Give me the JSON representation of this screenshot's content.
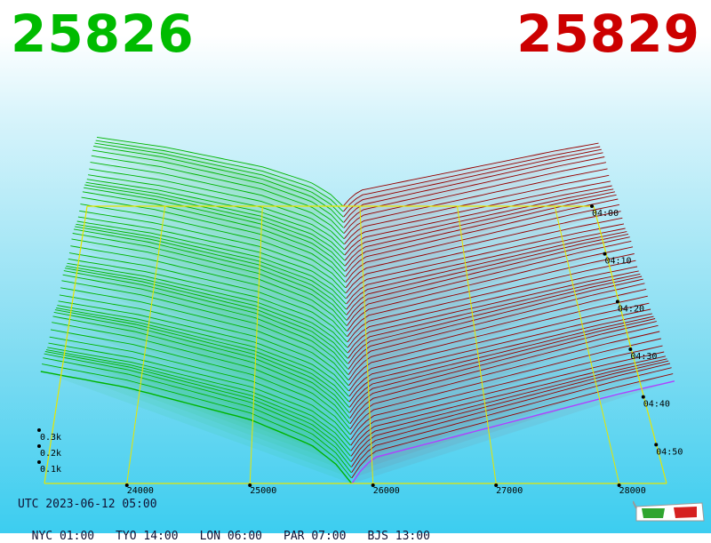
{
  "header": {
    "bid_price": "25826",
    "ask_price": "25829",
    "bid_color": "#00bb00",
    "ask_color": "#cc0000"
  },
  "footer": {
    "utc_time": "UTC 2023-06-12 05:00",
    "zones": [
      "NYC 01:00",
      "TYO 14:00",
      "LON 06:00",
      "PAR 07:00",
      "BJS 13:00"
    ]
  },
  "icons": {
    "glasses": "3d-glasses-icon"
  },
  "chart_data": {
    "type": "area",
    "subtype": "3d-order-book-depth-waterfall",
    "price_axis": {
      "ticks": [
        24000,
        25000,
        26000,
        27000,
        28000
      ],
      "range": [
        23200,
        28400
      ]
    },
    "depth_axis": {
      "ticks": [
        "0.1k",
        "0.2k",
        "0.3k"
      ]
    },
    "time_axis": {
      "ticks": [
        "04:00",
        "04:10",
        "04:20",
        "04:30",
        "04:40",
        "04:50"
      ]
    },
    "mid_price": 25827,
    "series": [
      {
        "side": "bid",
        "color": "#00aa00",
        "x": [
          23300,
          24000,
          25000,
          25500,
          25700,
          25826
        ],
        "y": [
          0.35,
          0.3,
          0.2,
          0.12,
          0.06,
          0.0
        ]
      },
      {
        "side": "ask",
        "color": "#aa0000",
        "x": [
          25829,
          25900,
          26000,
          27000,
          28000,
          28450
        ],
        "y": [
          0.0,
          0.04,
          0.08,
          0.18,
          0.28,
          0.32
        ]
      }
    ],
    "snapshots": 52,
    "colors": {
      "grid": "#e6e600",
      "bid_line": "#00b400",
      "ask_line": "#960000",
      "current_ask": "#b040ff"
    }
  }
}
